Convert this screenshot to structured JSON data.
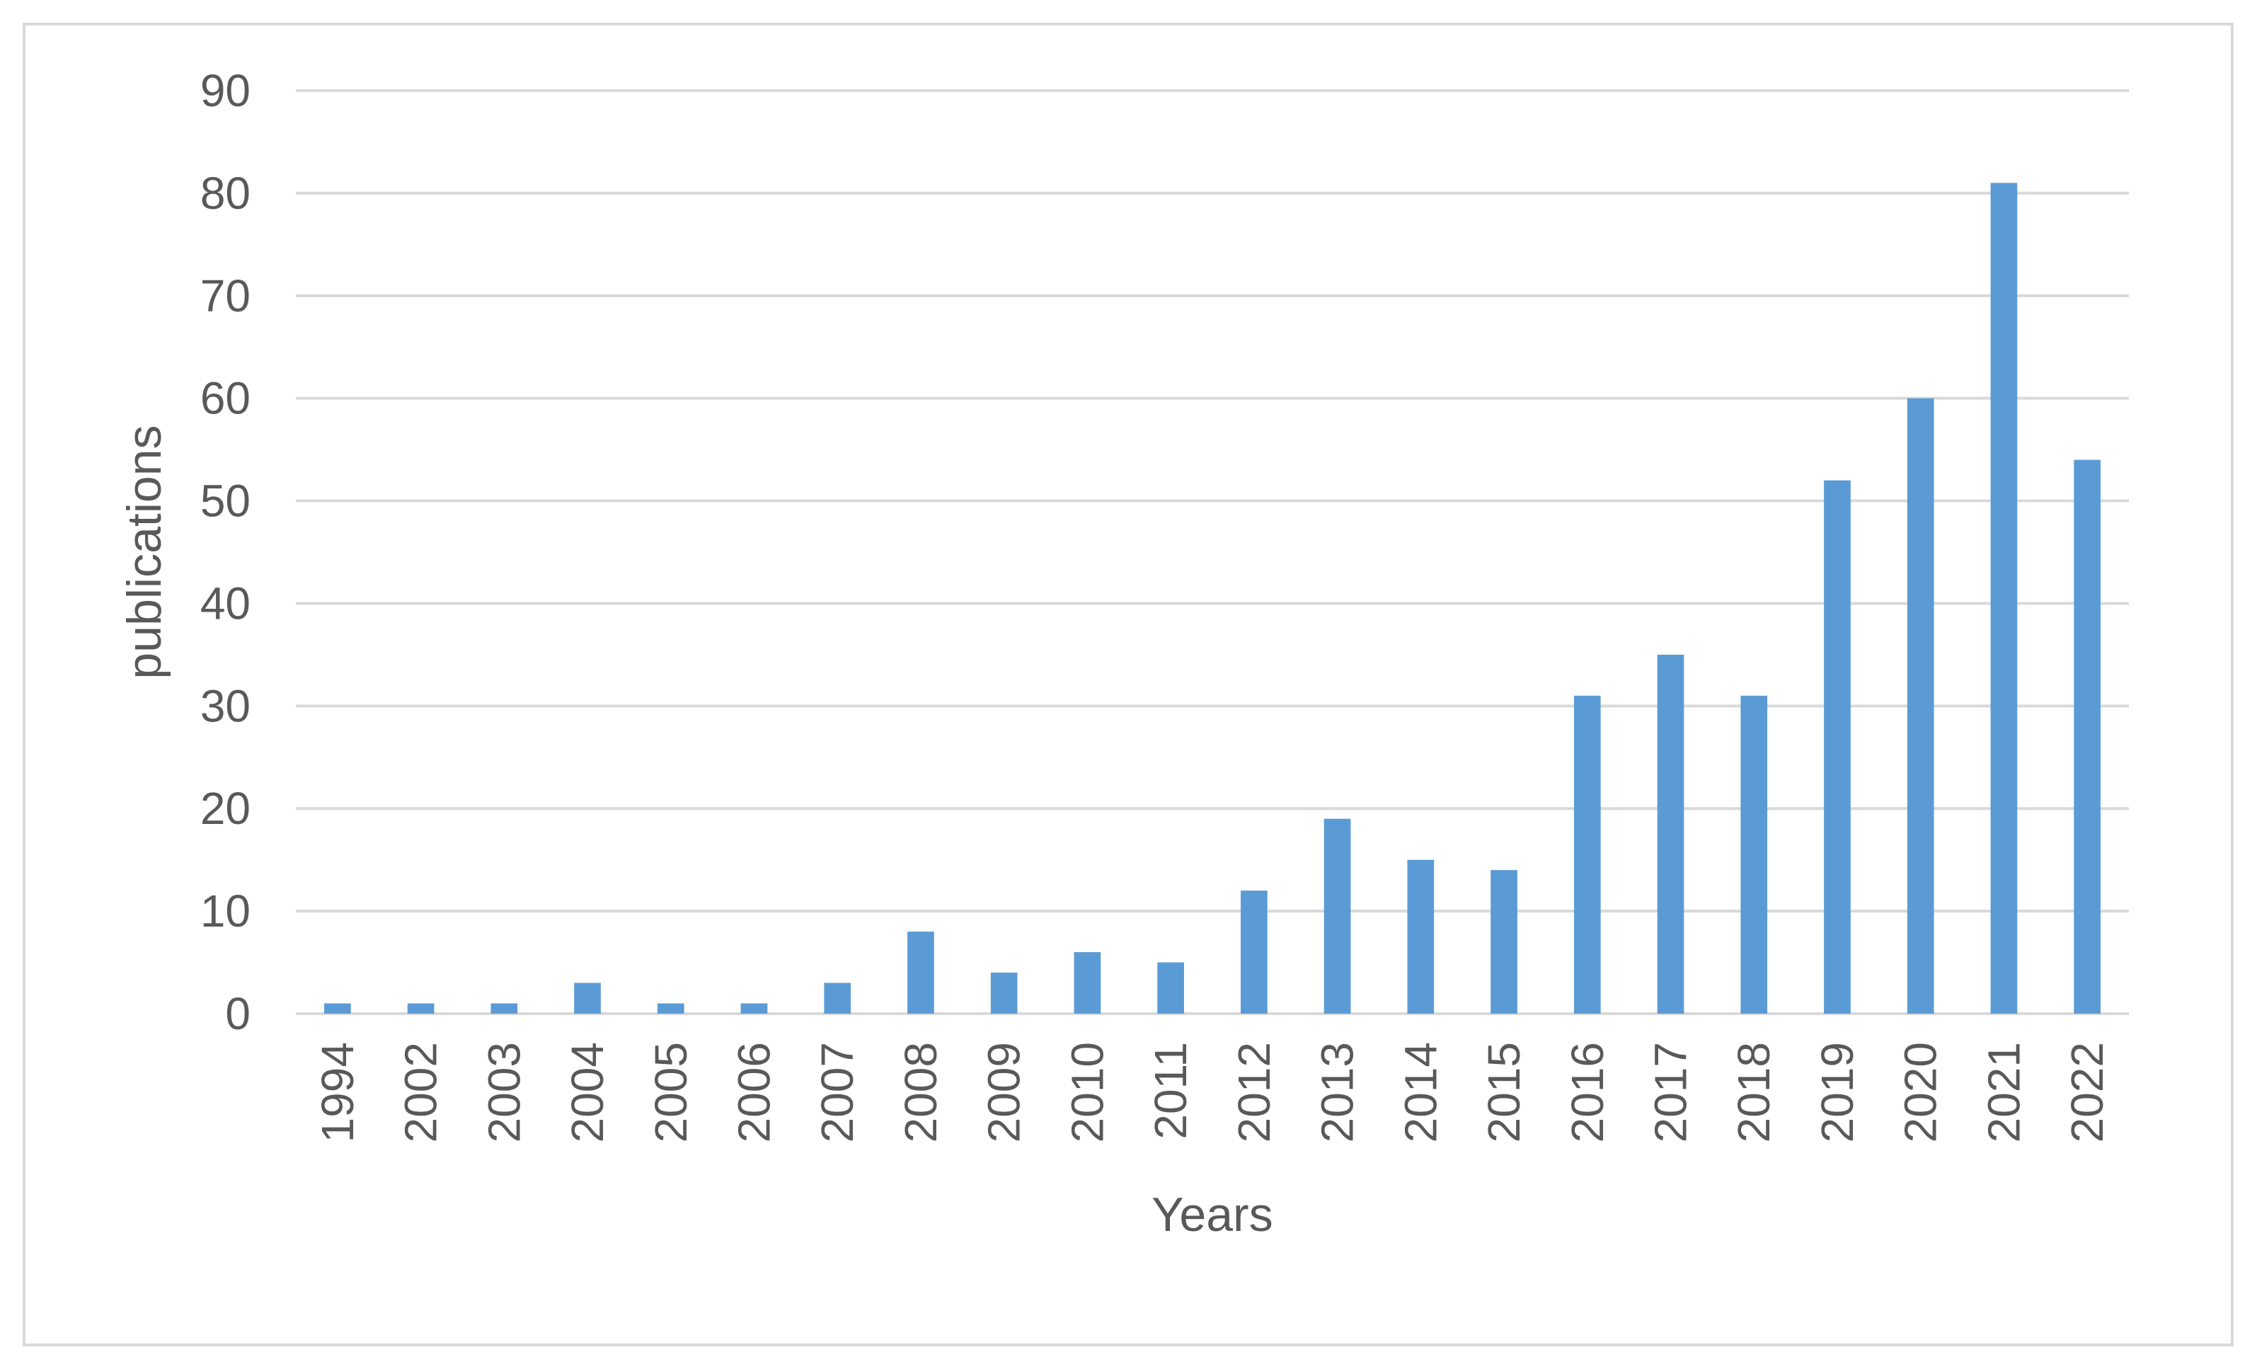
{
  "chart_data": {
    "type": "bar",
    "title": "",
    "xlabel": "Years",
    "ylabel": "publications",
    "categories": [
      "1994",
      "2002",
      "2003",
      "2004",
      "2005",
      "2006",
      "2007",
      "2008",
      "2009",
      "2010",
      "2011",
      "2012",
      "2013",
      "2014",
      "2015",
      "2016",
      "2017",
      "2018",
      "2019",
      "2020",
      "2021",
      "2022"
    ],
    "values": [
      1,
      1,
      1,
      3,
      1,
      1,
      3,
      8,
      4,
      6,
      5,
      12,
      19,
      15,
      14,
      31,
      35,
      31,
      52,
      60,
      81,
      54
    ],
    "ylim": [
      0,
      90
    ],
    "yticks": [
      0,
      10,
      20,
      30,
      40,
      50,
      60,
      70,
      80,
      90
    ],
    "grid": true,
    "legend": "none",
    "bar_color": "#5b9bd5",
    "grid_color": "#d9d9d9",
    "text_color": "#595959"
  }
}
